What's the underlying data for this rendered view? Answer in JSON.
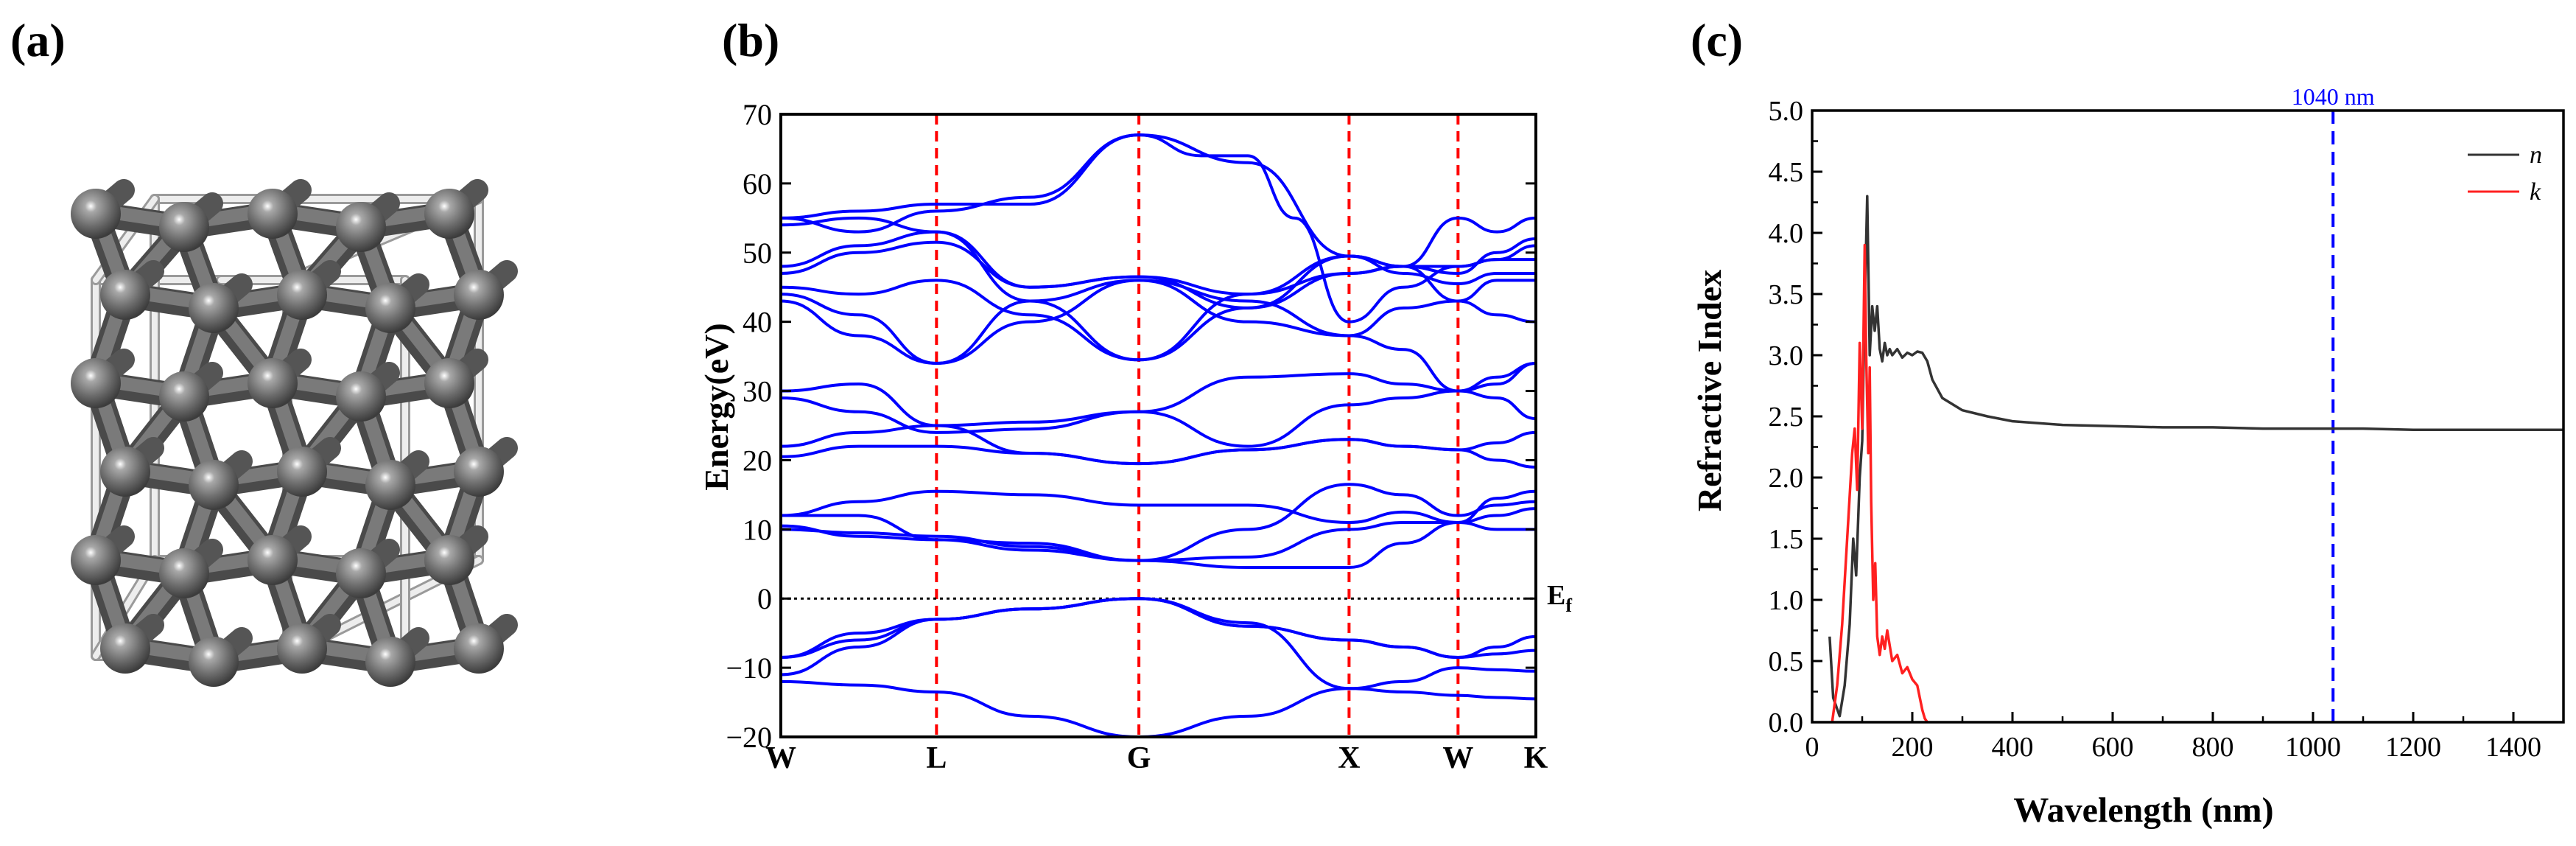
{
  "panels": {
    "a": {
      "label": "(a)"
    },
    "b": {
      "label": "(b)"
    },
    "c": {
      "label": "(c)"
    }
  },
  "colors": {
    "crystal_atom": "#6e6e6e",
    "crystal_bond": "#ededed",
    "band": "#0000ff",
    "kpoint_line": "#ff0000",
    "n_line": "#333333",
    "k_line": "#ff2020",
    "marker_line": "#0000ff"
  },
  "chart_data": [
    {
      "type": "line",
      "panel": "b",
      "ylabel": "Energy(eV)",
      "ylim": [
        -20,
        70
      ],
      "yticks": [
        -20,
        -10,
        0,
        10,
        20,
        30,
        40,
        50,
        60,
        70
      ],
      "kpoints": [
        {
          "label": "W",
          "pos": 0.0
        },
        {
          "label": "L",
          "pos": 1.0
        },
        {
          "label": "G",
          "pos": 2.3
        },
        {
          "label": "X",
          "pos": 3.65
        },
        {
          "label": "W",
          "pos": 4.35
        },
        {
          "label": "K",
          "pos": 4.85
        }
      ],
      "fermi_label": "E",
      "fermi_subscript": "f",
      "fermi_level": 0,
      "bands": [
        {
          "x": [
            0,
            0.5,
            1,
            1.6,
            2.3,
            3.0,
            3.65,
            4.0,
            4.35,
            4.6,
            4.85
          ],
          "y": [
            -12,
            -12.5,
            -13.5,
            -17,
            -20,
            -17,
            -13,
            -13.5,
            -14,
            -14.3,
            -14.5
          ]
        },
        {
          "x": [
            0,
            0.5,
            1,
            1.6,
            2.3,
            3.0,
            3.65,
            4.0,
            4.35,
            4.6,
            4.85
          ],
          "y": [
            -8.5,
            -6,
            -3,
            -1.5,
            0,
            -3.5,
            -13,
            -12,
            -10,
            -10.3,
            -10.5
          ]
        },
        {
          "x": [
            0,
            0.5,
            1,
            1.6,
            2.3,
            3.0,
            3.65,
            4.0,
            4.35,
            4.6,
            4.85
          ],
          "y": [
            -11,
            -7,
            -3,
            -1.5,
            0,
            -4,
            -6,
            -7,
            -8.5,
            -8,
            -7.5
          ]
        },
        {
          "x": [
            0,
            0.5,
            1,
            1.6,
            2.3,
            3.0,
            3.65,
            4.0,
            4.35,
            4.6,
            4.85
          ],
          "y": [
            -8.5,
            -5,
            -3,
            -1.5,
            0,
            -4,
            -6,
            -7,
            -8.5,
            -7,
            -5.5
          ]
        },
        {
          "x": [
            0,
            0.5,
            1,
            1.6,
            2.3,
            3.0,
            3.65,
            4.0,
            4.35,
            4.6,
            4.85
          ],
          "y": [
            10,
            9.5,
            9,
            7.5,
            5.5,
            4.5,
            4.5,
            8,
            11,
            10,
            10
          ]
        },
        {
          "x": [
            0,
            0.5,
            1,
            1.6,
            2.3,
            3.0,
            3.65,
            4.0,
            4.35,
            4.6,
            4.85
          ],
          "y": [
            10.5,
            9,
            8.5,
            7,
            5.5,
            6,
            10,
            11,
            11,
            12,
            13
          ]
        },
        {
          "x": [
            0,
            0.5,
            1,
            1.6,
            2.3,
            3.0,
            3.65,
            4.0,
            4.35,
            4.6,
            4.85
          ],
          "y": [
            12,
            12,
            8.5,
            8,
            5.5,
            10,
            16.5,
            15,
            12,
            13.5,
            14
          ]
        },
        {
          "x": [
            0,
            0.5,
            1,
            1.6,
            2.3,
            3.0,
            3.65,
            4.0,
            4.35,
            4.6,
            4.85
          ],
          "y": [
            12,
            14,
            15.5,
            15,
            13.5,
            13.5,
            11,
            12.5,
            11,
            14.5,
            15.5
          ]
        },
        {
          "x": [
            0,
            0.5,
            1,
            1.6,
            2.3,
            3.0,
            3.65,
            4.0,
            4.35,
            4.6,
            4.85
          ],
          "y": [
            20.5,
            22,
            22,
            21,
            19.5,
            21.5,
            23,
            22,
            21.5,
            22.5,
            24
          ]
        },
        {
          "x": [
            0,
            0.5,
            1,
            1.6,
            2.3,
            3.0,
            3.65,
            4.0,
            4.35,
            4.6,
            4.85
          ],
          "y": [
            22,
            24,
            25,
            21,
            19.5,
            21.5,
            23,
            22,
            21.5,
            20,
            19
          ]
        },
        {
          "x": [
            0,
            0.5,
            1,
            1.6,
            2.3,
            3.0,
            3.65,
            4.0,
            4.35,
            4.6,
            4.85
          ],
          "y": [
            30,
            31,
            25,
            25.5,
            27,
            32,
            32.5,
            31,
            30,
            29,
            26
          ]
        },
        {
          "x": [
            0,
            0.5,
            1,
            1.6,
            2.3,
            3.0,
            3.65,
            4.0,
            4.35,
            4.6,
            4.85
          ],
          "y": [
            29,
            27,
            24,
            24.5,
            27,
            22,
            28,
            29,
            30,
            31,
            34
          ]
        },
        {
          "x": [
            0,
            0.5,
            1,
            1.6,
            2.3,
            3.0,
            3.65,
            4.0,
            4.35,
            4.6,
            4.85
          ],
          "y": [
            43,
            38,
            34,
            40,
            46,
            40,
            38,
            36,
            30,
            32,
            34
          ]
        },
        {
          "x": [
            0,
            0.5,
            1,
            1.6,
            2.3,
            3.0,
            3.65,
            4.0,
            4.35,
            4.6,
            4.85
          ],
          "y": [
            44,
            41,
            34,
            43,
            46,
            43,
            38,
            42,
            43,
            41,
            40
          ]
        },
        {
          "x": [
            0,
            0.5,
            1,
            1.6,
            2.3,
            3.0,
            3.65,
            4.0,
            4.35,
            4.6,
            4.85
          ],
          "y": [
            45,
            44,
            46,
            41,
            34.5,
            44,
            49.5,
            47,
            45.5,
            47,
            47
          ]
        },
        {
          "x": [
            0,
            0.5,
            1,
            1.6,
            2.3,
            3.0,
            3.65,
            4.0,
            4.35,
            4.6,
            4.85
          ],
          "y": [
            47,
            50,
            51.5,
            45,
            46.5,
            42,
            49.5,
            48,
            48,
            49,
            49
          ]
        },
        {
          "x": [
            0,
            0.5,
            1,
            1.6,
            2.3,
            3.0,
            3.65,
            4.0,
            4.35,
            4.6,
            4.85
          ],
          "y": [
            48,
            51,
            53,
            45,
            46.5,
            44,
            47,
            48,
            47,
            50,
            52
          ]
        },
        {
          "x": [
            0,
            0.5,
            1,
            1.6,
            2.3,
            3.0,
            3.65,
            4.0,
            4.35,
            4.6,
            4.85
          ],
          "y": [
            54,
            55,
            53,
            43,
            34.5,
            42,
            47,
            48,
            43,
            46,
            46
          ]
        },
        {
          "x": [
            0,
            0.5,
            1,
            1.6,
            2.3,
            3.0,
            3.65,
            4.0,
            4.35,
            4.6,
            4.85
          ],
          "y": [
            55,
            53,
            56,
            58,
            67,
            63,
            49.5,
            48,
            55,
            53,
            55
          ]
        },
        {
          "x": [
            0,
            0.5,
            1,
            1.6,
            2.3,
            2.7,
            3.0,
            3.3,
            3.65,
            4.0,
            4.35,
            4.6,
            4.85
          ],
          "y": [
            55,
            56,
            57,
            57,
            67,
            64,
            64,
            55,
            40,
            45,
            48,
            49,
            51
          ]
        }
      ]
    },
    {
      "type": "line",
      "panel": "c",
      "xlabel": "Wavelength (nm)",
      "ylabel": "Refractive Index",
      "xlim": [
        0,
        1500
      ],
      "ylim": [
        0.0,
        5.0
      ],
      "xticks": [
        0,
        200,
        400,
        600,
        800,
        1000,
        1200,
        1400
      ],
      "yticks": [
        "0.0",
        "0.5",
        "1.0",
        "1.5",
        "2.0",
        "2.5",
        "3.0",
        "3.5",
        "4.0",
        "4.5",
        "5.0"
      ],
      "legend_position": "top-right",
      "marker": {
        "x": 1040,
        "label": "1040 nm"
      },
      "series": [
        {
          "name": "n",
          "color": "#333333",
          "x": [
            35,
            42,
            55,
            65,
            75,
            82,
            88,
            95,
            100,
            105,
            110,
            115,
            120,
            125,
            130,
            135,
            140,
            145,
            150,
            155,
            160,
            170,
            180,
            190,
            200,
            210,
            220,
            230,
            240,
            260,
            300,
            350,
            400,
            500,
            600,
            700,
            800,
            900,
            1000,
            1040,
            1100,
            1200,
            1300,
            1400,
            1500
          ],
          "y": [
            0.7,
            0.2,
            0.05,
            0.3,
            0.8,
            1.5,
            1.2,
            2.0,
            2.3,
            3.4,
            4.3,
            3.0,
            3.4,
            3.2,
            3.4,
            3.05,
            2.95,
            3.1,
            3.0,
            3.05,
            3.0,
            3.05,
            2.98,
            3.02,
            3.0,
            3.03,
            3.02,
            2.95,
            2.8,
            2.65,
            2.55,
            2.5,
            2.46,
            2.43,
            2.42,
            2.41,
            2.41,
            2.4,
            2.4,
            2.4,
            2.4,
            2.39,
            2.39,
            2.39,
            2.39
          ]
        },
        {
          "name": "k",
          "color": "#ff2020",
          "x": [
            40,
            50,
            60,
            70,
            80,
            85,
            90,
            95,
            100,
            105,
            108,
            112,
            115,
            118,
            122,
            126,
            130,
            135,
            140,
            145,
            150,
            160,
            170,
            180,
            190,
            200,
            210,
            215,
            220,
            225,
            230
          ],
          "y": [
            0.0,
            0.3,
            0.8,
            1.5,
            2.2,
            2.4,
            1.9,
            3.1,
            2.4,
            3.9,
            3.0,
            2.2,
            2.9,
            1.8,
            1.0,
            1.3,
            0.7,
            0.55,
            0.7,
            0.6,
            0.75,
            0.5,
            0.55,
            0.4,
            0.45,
            0.35,
            0.3,
            0.2,
            0.1,
            0.03,
            0.0
          ]
        }
      ]
    }
  ]
}
